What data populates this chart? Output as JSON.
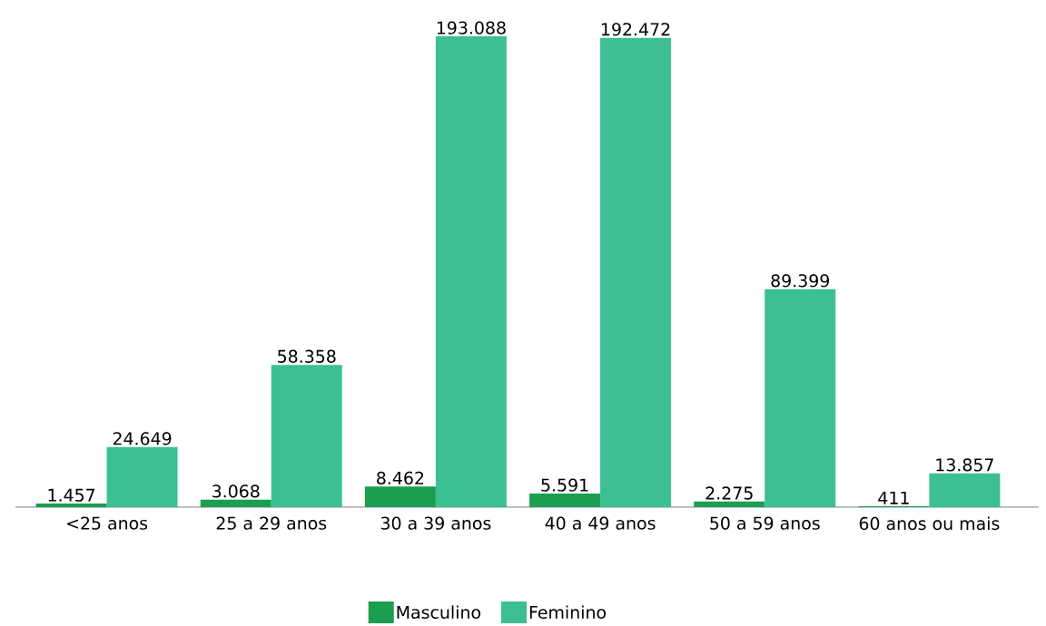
{
  "chart_data": {
    "type": "bar",
    "categories": [
      "<25 anos",
      "25 a 29 anos",
      "30 a 39 anos",
      "40 a 49 anos",
      "50 a 59 anos",
      "60 anos ou mais"
    ],
    "series": [
      {
        "name": "Masculino",
        "color": "#1b9e50",
        "values": [
          1457,
          3068,
          8462,
          5591,
          2275,
          411
        ],
        "value_labels": [
          "1.457",
          "3.068",
          "8.462",
          "5.591",
          "2.275",
          "411"
        ]
      },
      {
        "name": "Feminino",
        "color": "#3dbf94",
        "values": [
          24649,
          58358,
          193088,
          192472,
          89399,
          13857
        ],
        "value_labels": [
          "24.649",
          "58.358",
          "193.088",
          "192.472",
          "89.399",
          "13.857"
        ]
      }
    ],
    "legend": "bottom",
    "grid": false
  }
}
